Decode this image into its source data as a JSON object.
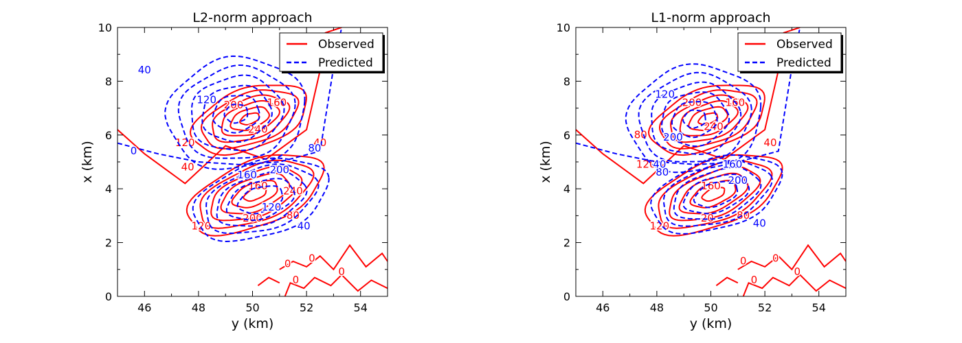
{
  "chart_data": [
    {
      "type": "contour",
      "title": "L2-norm approach",
      "xlabel": "y (km)",
      "ylabel": "x (km)",
      "xlim": [
        45,
        55
      ],
      "ylim": [
        0,
        10
      ],
      "xticks": [
        "46",
        "48",
        "50",
        "52",
        "54"
      ],
      "yticks": [
        "0",
        "2",
        "4",
        "6",
        "8",
        "10"
      ],
      "legend": {
        "placement": "top-right",
        "entries": [
          "Observed",
          "Predicted"
        ]
      },
      "series": [
        {
          "name": "Observed",
          "color": "#ff0000",
          "style": "solid",
          "lobes": [
            {
              "cx": 49.9,
              "cy": 6.6,
              "a": 2.6,
              "b": 1.3,
              "angle": 20,
              "levels": [
                40,
                80,
                120,
                160,
                200,
                240
              ]
            },
            {
              "cx": 50.1,
              "cy": 3.8,
              "a": 3.1,
              "b": 1.4,
              "angle": 22,
              "levels": [
                -40,
                -80,
                -120,
                -160,
                -200,
                -240
              ]
            }
          ],
          "labels": [
            {
              "text": "200",
              "x": 49.3,
              "y": 7.1
            },
            {
              "text": "160",
              "x": 50.9,
              "y": 7.2
            },
            {
              "text": "120",
              "x": 47.5,
              "y": 5.7
            },
            {
              "text": "240",
              "x": 50.2,
              "y": 6.2
            },
            {
              "text": "40",
              "x": 47.6,
              "y": 4.8
            },
            {
              "text": "160",
              "x": 50.2,
              "y": 4.1
            },
            {
              "text": "240",
              "x": 51.5,
              "y": 3.9
            },
            {
              "text": "200",
              "x": 50.0,
              "y": 2.9
            },
            {
              "text": "80",
              "x": 51.5,
              "y": 3.0
            },
            {
              "text": "40",
              "x": 52.5,
              "y": 5.7
            },
            {
              "text": "120",
              "x": 48.1,
              "y": 2.6
            },
            {
              "text": "0",
              "x": 51.3,
              "y": 1.2
            },
            {
              "text": "0",
              "x": 52.2,
              "y": 1.4
            },
            {
              "text": "0",
              "x": 53.3,
              "y": 0.9
            },
            {
              "text": "0",
              "x": 51.6,
              "y": 0.6
            }
          ]
        },
        {
          "name": "Predicted",
          "color": "#0000ff",
          "style": "dashed",
          "lobes": [
            {
              "cx": 49.4,
              "cy": 6.8,
              "a": 3.0,
              "b": 2.4,
              "angle": 10,
              "levels": [
                40,
                80,
                120,
                160,
                200,
                240
              ]
            },
            {
              "cx": 50.3,
              "cy": 3.6,
              "a": 3.0,
              "b": 1.6,
              "angle": 18,
              "levels": [
                -40,
                -80,
                -120,
                -160,
                -200
              ]
            }
          ],
          "labels": [
            {
              "text": "40",
              "x": 46.0,
              "y": 8.4
            },
            {
              "text": "120",
              "x": 48.3,
              "y": 7.3
            },
            {
              "text": "0",
              "x": 45.6,
              "y": 5.4
            },
            {
              "text": "80",
              "x": 52.3,
              "y": 5.5
            },
            {
              "text": "200",
              "x": 51.0,
              "y": 4.7
            },
            {
              "text": "160",
              "x": 49.8,
              "y": 4.5
            },
            {
              "text": "120",
              "x": 50.7,
              "y": 3.3
            },
            {
              "text": "40",
              "x": 51.9,
              "y": 2.6
            }
          ]
        }
      ]
    },
    {
      "type": "contour",
      "title": "L1-norm approach",
      "xlabel": "y (km)",
      "ylabel": "x (km)",
      "xlim": [
        45,
        55
      ],
      "ylim": [
        0,
        10
      ],
      "xticks": [
        "46",
        "48",
        "50",
        "52",
        "54"
      ],
      "yticks": [
        "0",
        "2",
        "4",
        "6",
        "8",
        "10"
      ],
      "legend": {
        "placement": "top-right",
        "entries": [
          "Observed",
          "Predicted"
        ]
      },
      "series": [
        {
          "name": "Observed",
          "color": "#ff0000",
          "style": "solid",
          "lobes": [
            {
              "cx": 49.9,
              "cy": 6.6,
              "a": 2.6,
              "b": 1.3,
              "angle": 20,
              "levels": [
                40,
                80,
                120,
                160,
                200,
                240
              ]
            },
            {
              "cx": 50.1,
              "cy": 3.8,
              "a": 3.1,
              "b": 1.4,
              "angle": 22,
              "levels": [
                -40,
                -80,
                -120,
                -160,
                -200,
                -240
              ]
            }
          ],
          "labels": [
            {
              "text": "200",
              "x": 49.3,
              "y": 7.2
            },
            {
              "text": "160",
              "x": 50.9,
              "y": 7.2
            },
            {
              "text": "80",
              "x": 47.4,
              "y": 6.0
            },
            {
              "text": "240",
              "x": 50.1,
              "y": 6.3
            },
            {
              "text": "120",
              "x": 47.6,
              "y": 4.9
            },
            {
              "text": "160",
              "x": 50.0,
              "y": 4.1
            },
            {
              "text": "-20",
              "x": 49.8,
              "y": 2.9
            },
            {
              "text": "80",
              "x": 51.2,
              "y": 3.0
            },
            {
              "text": "40",
              "x": 52.2,
              "y": 5.7
            },
            {
              "text": "120",
              "x": 48.1,
              "y": 2.6
            },
            {
              "text": "0",
              "x": 51.2,
              "y": 1.3
            },
            {
              "text": "0",
              "x": 52.4,
              "y": 1.4
            },
            {
              "text": "0",
              "x": 53.2,
              "y": 0.9
            },
            {
              "text": "0",
              "x": 51.6,
              "y": 0.6
            }
          ]
        },
        {
          "name": "Predicted",
          "color": "#0000ff",
          "style": "dashed",
          "lobes": [
            {
              "cx": 49.4,
              "cy": 6.6,
              "a": 2.9,
              "b": 2.3,
              "angle": 10,
              "levels": [
                40,
                80,
                120,
                160,
                200,
                240
              ]
            },
            {
              "cx": 50.2,
              "cy": 3.8,
              "a": 2.9,
              "b": 1.5,
              "angle": 18,
              "levels": [
                -40,
                -80,
                -120,
                -160,
                -200
              ]
            }
          ],
          "labels": [
            {
              "text": "120",
              "x": 48.3,
              "y": 7.5
            },
            {
              "text": "200",
              "x": 48.6,
              "y": 5.9
            },
            {
              "text": "80",
              "x": 48.2,
              "y": 4.6
            },
            {
              "text": "40",
              "x": 48.1,
              "y": 4.9
            },
            {
              "text": "160",
              "x": 50.8,
              "y": 4.9
            },
            {
              "text": "200",
              "x": 51.0,
              "y": 4.3
            },
            {
              "text": "40",
              "x": 51.8,
              "y": 2.7
            }
          ]
        }
      ]
    }
  ]
}
